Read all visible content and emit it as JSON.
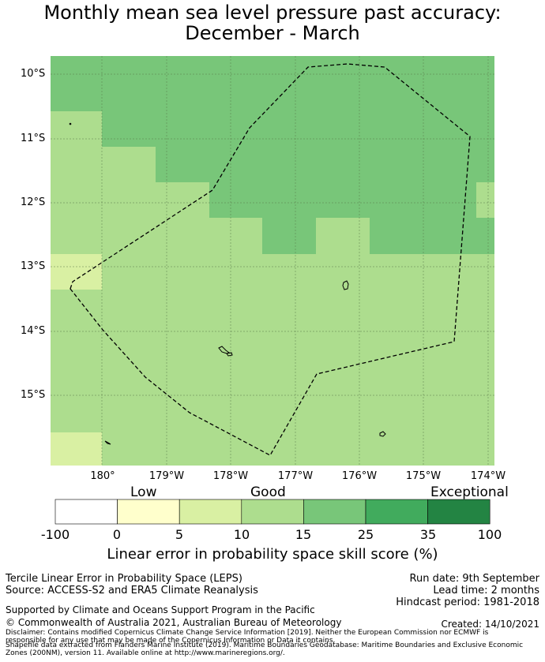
{
  "title": {
    "line1": "Monthly mean sea level pressure past accuracy:",
    "line2": "December - March"
  },
  "map": {
    "lat_labels": [
      "10°S",
      "11°S",
      "12°S",
      "13°S",
      "14°S",
      "15°S"
    ],
    "lon_labels": [
      "180°",
      "179°W",
      "178°W",
      "177°W",
      "176°W",
      "175°W",
      "174°W"
    ],
    "lon_range": [
      -180.8,
      -173.9
    ],
    "lat_range": [
      -16.1,
      -9.7
    ],
    "gridlines": true,
    "boundary_style": "dashed"
  },
  "colors": {
    "lt0": "#ffffff",
    "c0_5": "#ffffcc",
    "c5_10": "#d9f0a3",
    "c10_15": "#addd8e",
    "c15_25": "#78c679",
    "c25_35": "#41ab5d",
    "c35_100": "#238443"
  },
  "colorbar": {
    "category_low": "Low",
    "category_good": "Good",
    "category_exceptional": "Exceptional",
    "ticks": [
      "-100",
      "0",
      "5",
      "10",
      "15",
      "25",
      "35",
      "100"
    ],
    "label": "Linear error in probability space skill score (%)"
  },
  "footer": {
    "left_line1": "Tercile Linear Error in Probability Space (LEPS)",
    "left_line2": "Source: ACCESS-S2 and ERA5 Climate Reanalysis",
    "run_date": "Run date: 9th September",
    "lead_time": "Lead time: 2 months",
    "hindcast": "Hindcast period: 1981-2018",
    "supported": "Supported by Climate and Oceans Support Program in the Pacific",
    "copyright": "© Commonwealth of Australia 2021, Australian Bureau of Meteorology",
    "created": "Created: 14/10/2021",
    "disclaimer1": "Disclaimer: Contains modified Copernicus Climate Change Service Information [2019]. Neither the European Commission nor ECMWF is",
    "disclaimer2": "responsible for any use that may be made of the Copernicus Information or Data it contains.",
    "disclaimer3": "Shapefile data extracted from Flanders Marine Institute (2019). Maritime Boundaries Geodatabase: Maritime Boundaries and Exclusive Economic",
    "disclaimer4": "Zones (200NM), version 11. Available online at http://www.marineregions.org/."
  }
}
